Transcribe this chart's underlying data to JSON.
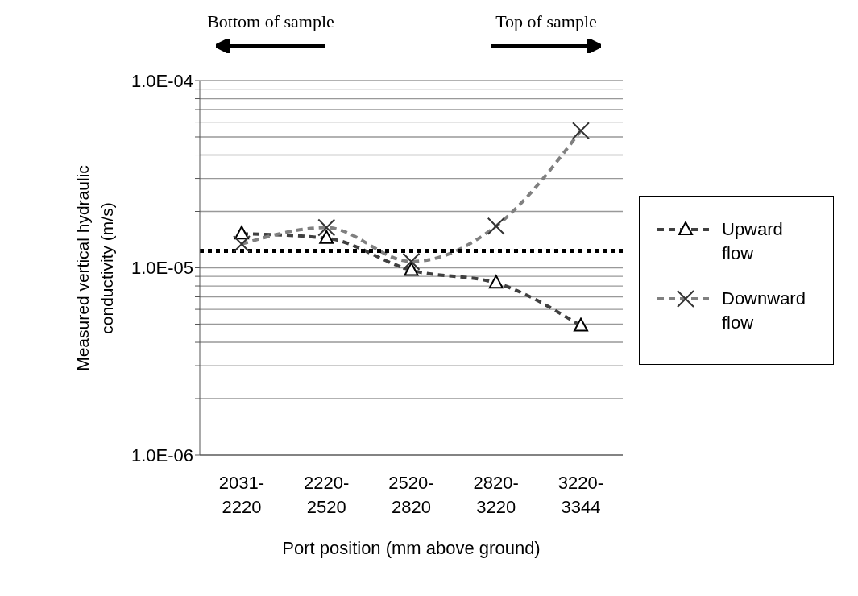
{
  "chart_data": {
    "type": "line",
    "xlabel": "Port position (mm above ground)",
    "ylabel": "Measured vertical hydraulic conductivity (m/s)",
    "categories": [
      "2031-2220",
      "2220-2520",
      "2520-2820",
      "2820-3220",
      "3220-3344"
    ],
    "series": [
      {
        "name": "Upward flow",
        "color": "#404040",
        "marker": "triangle",
        "values": [
          1.52e-05,
          1.44e-05,
          9.7e-06,
          8.3e-06,
          4.9e-06
        ]
      },
      {
        "name": "Downward flow",
        "color": "#808080",
        "marker": "cross",
        "values": [
          1.34e-05,
          1.64e-05,
          1.08e-05,
          1.67e-05,
          5.4e-05
        ]
      }
    ],
    "log": "y",
    "ylim": [
      1e-06,
      0.0001
    ],
    "yticks": [
      {
        "value": 1e-06,
        "label": "1.0E-06"
      },
      {
        "value": 2e-06,
        "label": null
      },
      {
        "value": 3e-06,
        "label": null
      },
      {
        "value": 4e-06,
        "label": null
      },
      {
        "value": 5e-06,
        "label": null
      },
      {
        "value": 6e-06,
        "label": null
      },
      {
        "value": 7e-06,
        "label": null
      },
      {
        "value": 8e-06,
        "label": null
      },
      {
        "value": 9e-06,
        "label": null
      },
      {
        "value": 1e-05,
        "label": "1.0E-05"
      },
      {
        "value": 2e-05,
        "label": null
      },
      {
        "value": 3e-05,
        "label": null
      },
      {
        "value": 4e-05,
        "label": null
      },
      {
        "value": 5e-05,
        "label": null
      },
      {
        "value": 6e-05,
        "label": null
      },
      {
        "value": 7e-05,
        "label": null
      },
      {
        "value": 8e-05,
        "label": null
      },
      {
        "value": 9e-05,
        "label": null
      },
      {
        "value": 0.0001,
        "label": "1.0E-04"
      }
    ],
    "grid": "y",
    "legend": "right",
    "line_style": "dashed",
    "ref_lines": [
      {
        "axis": "y",
        "value": 1.23e-05,
        "color": "#000000",
        "line_style": "dotted"
      }
    ],
    "annotations": [
      "Bottom of sample",
      "Top of sample"
    ]
  }
}
